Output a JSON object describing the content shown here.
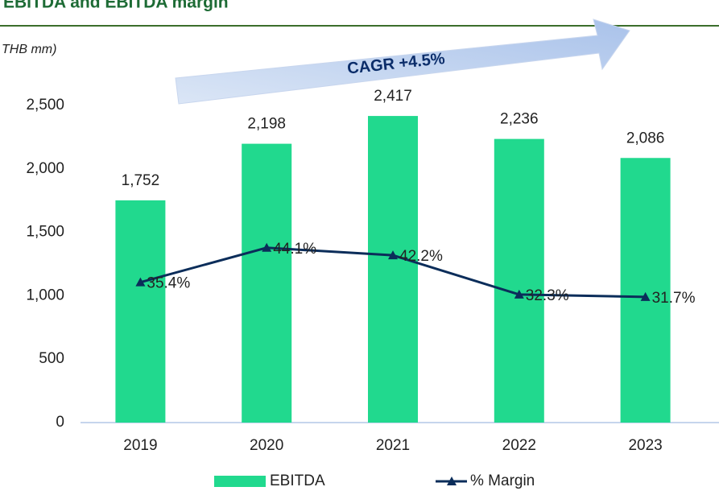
{
  "chart_data": {
    "type": "bar",
    "title": "EBITDA and EBITDA margin",
    "subtitle": "THB mm)",
    "annotation": "CAGR +4.5%",
    "categories": [
      "2019",
      "2020",
      "2021",
      "2022",
      "2023"
    ],
    "series": [
      {
        "name": "EBITDA",
        "type": "bar",
        "color": "#21d98e",
        "values": [
          1752,
          2198,
          2417,
          2236,
          2086
        ],
        "value_labels": [
          "1,752",
          "2,198",
          "2,417",
          "2,236",
          "2,086"
        ]
      },
      {
        "name": "% Margin",
        "type": "line",
        "axis": "y2",
        "color": "#0b2d5a",
        "values": [
          35.4,
          44.1,
          42.2,
          32.3,
          31.7
        ],
        "value_labels": [
          "35.4%",
          "44.1%",
          "42.2%",
          "32.3%",
          "31.7%"
        ]
      }
    ],
    "ylim": [
      0,
      2500
    ],
    "yticks": [
      0,
      500,
      {
        "value": 1000,
        "label": "1,000"
      },
      {
        "value": 1500,
        "label": "1,500"
      },
      {
        "value": 2000,
        "label": "2,000"
      },
      {
        "value": 2500,
        "label": "2,500"
      }
    ],
    "y2lim": [
      0,
      80
    ],
    "legend": "bottom"
  }
}
